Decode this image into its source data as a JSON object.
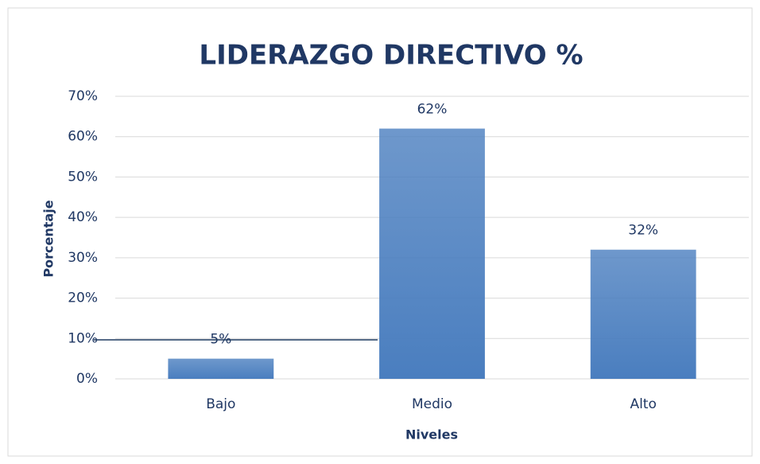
{
  "chart_data": {
    "type": "bar",
    "title": "LIDERAZGO DIRECTIVO %",
    "x_label": "Niveles",
    "y_label": "Porcentaje",
    "categories": [
      "Bajo",
      "Medio",
      "Alto"
    ],
    "values": [
      5,
      62,
      32
    ],
    "value_labels": [
      "5%",
      "62%",
      "32%"
    ],
    "color": "#4a7ebf",
    "ylim": [
      0,
      70
    ],
    "yticks": [
      {
        "value": 0,
        "label": "0%"
      },
      {
        "value": 10,
        "label": "10%"
      },
      {
        "value": 20,
        "label": "20%"
      },
      {
        "value": 30,
        "label": "30%"
      },
      {
        "value": 40,
        "label": "40%"
      },
      {
        "value": 50,
        "label": "50%"
      },
      {
        "value": 60,
        "label": "60%"
      },
      {
        "value": 70,
        "label": "70%"
      }
    ],
    "grid": true
  }
}
